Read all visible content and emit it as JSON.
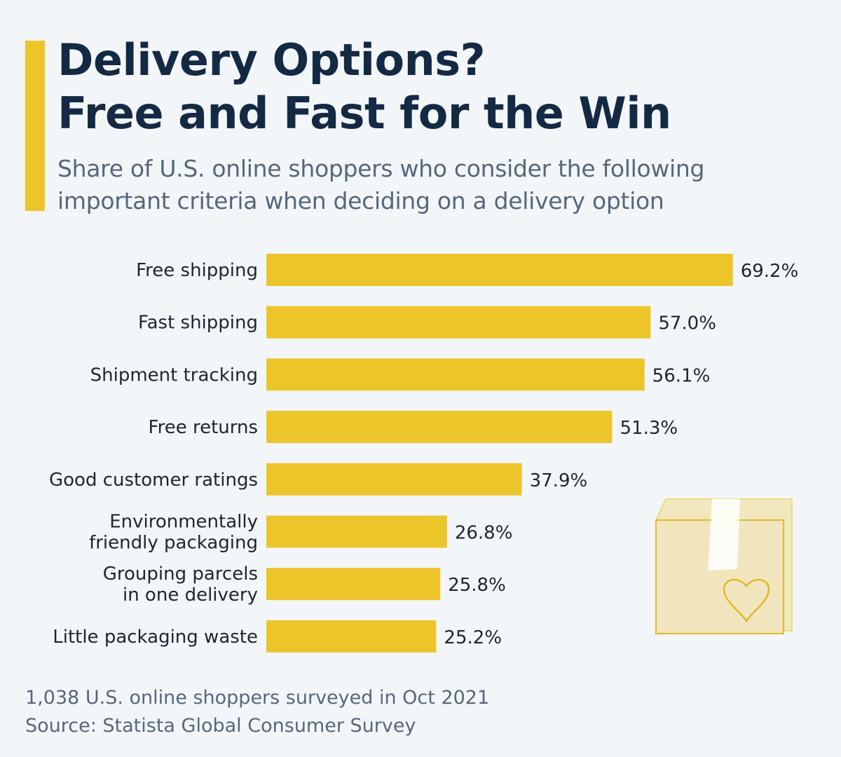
{
  "header": {
    "title_line1": "Delivery Options?",
    "title_line2": "Free and Fast for the Win",
    "subtitle_line1": "Share of U.S. online shoppers who consider the following",
    "subtitle_line2": "important criteria when deciding on a delivery option"
  },
  "colors": {
    "accent": "#ecc52b",
    "bar": "#ecc52b",
    "title": "#142a44",
    "subtitle": "#55677b",
    "background": "#f3f6f9"
  },
  "chart_data": {
    "type": "bar",
    "orientation": "horizontal",
    "title": "Delivery Options? Free and Fast for the Win",
    "categories": [
      [
        "Free shipping"
      ],
      [
        "Fast shipping"
      ],
      [
        "Shipment tracking"
      ],
      [
        "Free returns"
      ],
      [
        "Good customer ratings"
      ],
      [
        "Environmentally",
        "friendly packaging"
      ],
      [
        "Grouping parcels",
        "in one delivery"
      ],
      [
        "Little packaging waste"
      ]
    ],
    "values": [
      69.2,
      57.0,
      56.1,
      51.3,
      37.9,
      26.8,
      25.8,
      25.2
    ],
    "value_labels": [
      "69.2%",
      "57.0%",
      "56.1%",
      "51.3%",
      "37.9%",
      "26.8%",
      "25.8%",
      "25.2%"
    ],
    "unit": "%",
    "xlim": [
      0,
      100
    ],
    "grid": false,
    "legend": "none"
  },
  "illustration": {
    "icon": "package-box-with-heart-icon"
  },
  "footer": {
    "note": "1,038 U.S. online shoppers surveyed in Oct 2021",
    "source": "Source: Statista Global Consumer Survey"
  }
}
